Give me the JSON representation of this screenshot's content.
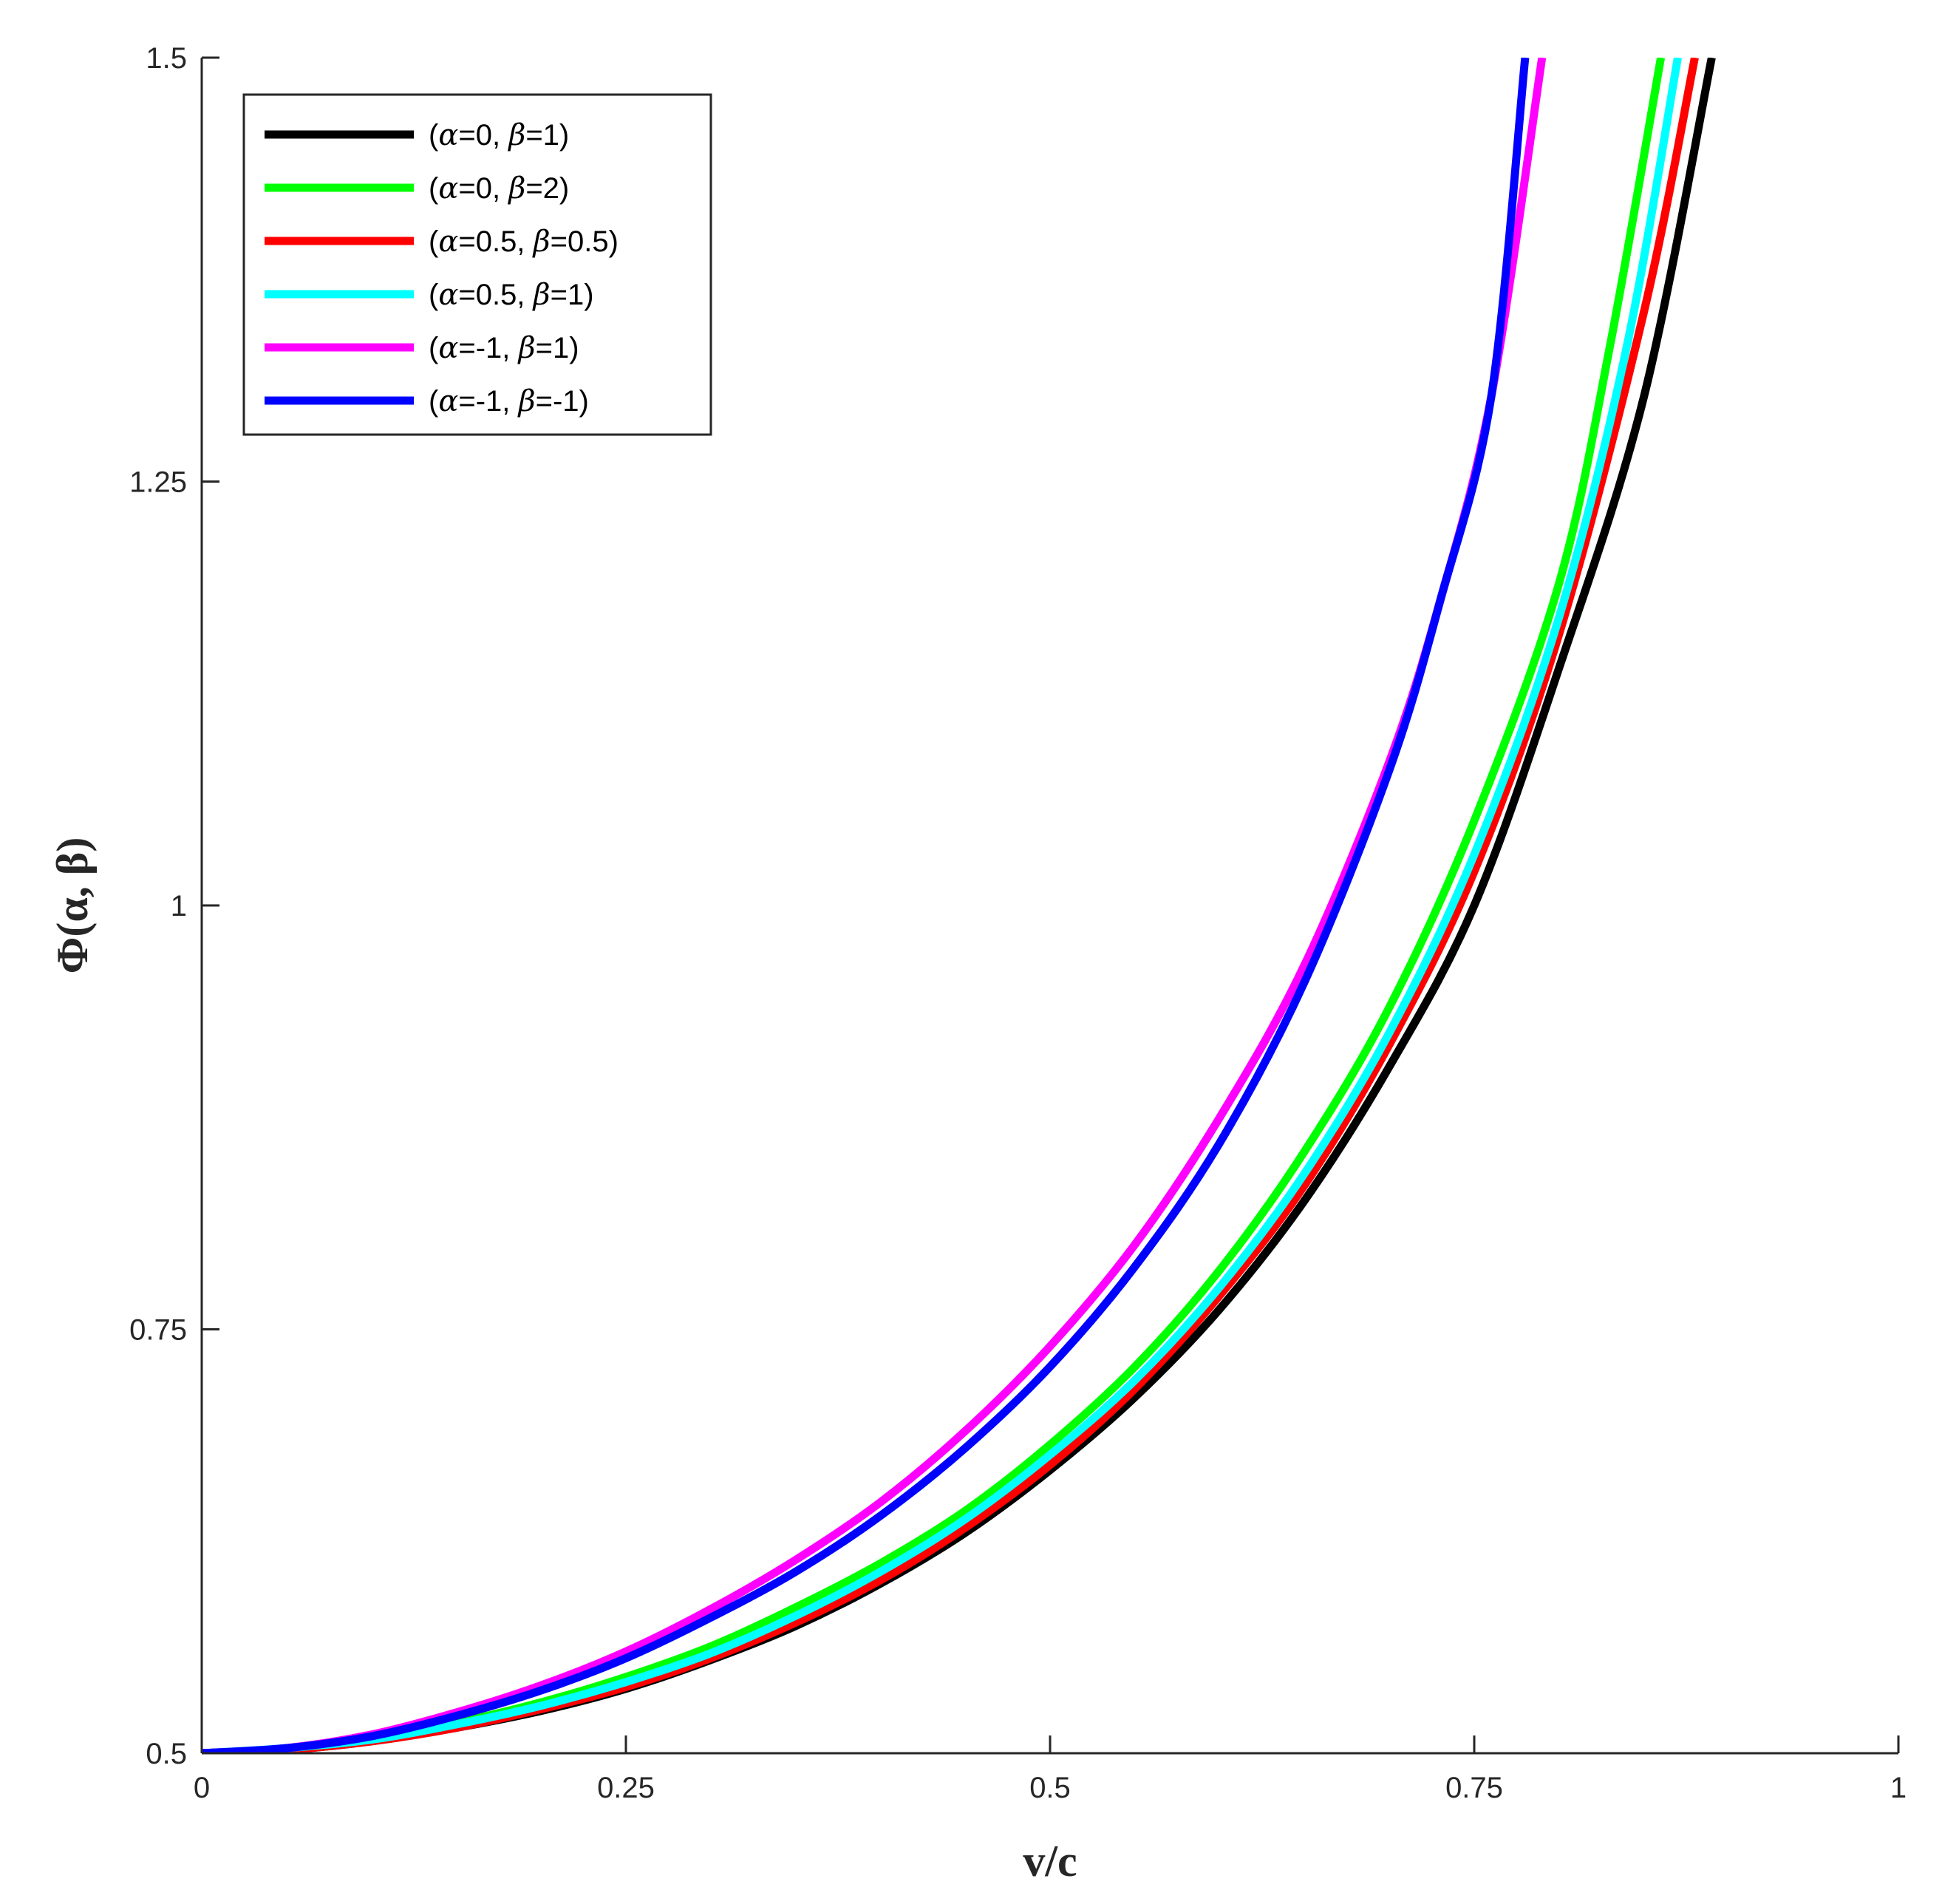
{
  "chart_data": {
    "type": "line",
    "title": "",
    "xlabel": "v/c",
    "ylabel": "Φ(α, β)",
    "xlim": [
      0,
      1
    ],
    "ylim": [
      0.5,
      1.5
    ],
    "xticks": [
      0,
      0.25,
      0.5,
      0.75,
      1
    ],
    "xtick_labels": [
      "0",
      "0.25",
      "0.5",
      "0.75",
      "1"
    ],
    "yticks": [
      0.5,
      0.75,
      1,
      1.25,
      1.5
    ],
    "ytick_labels": [
      "0.5",
      "0.75",
      "1",
      "1.25",
      "1.5"
    ],
    "grid": false,
    "legend_position": "top-left",
    "series": [
      {
        "name": "(α=0, β=1)",
        "legend": {
          "open": "(",
          "a_sym": "α",
          "a_val": "=0, ",
          "b_sym": "β",
          "b_val": "=1)"
        },
        "color": "#000000",
        "x": [
          0,
          0.05,
          0.1,
          0.15,
          0.2,
          0.25,
          0.3,
          0.35,
          0.4,
          0.45,
          0.5,
          0.55,
          0.6,
          0.65,
          0.7,
          0.75,
          0.8,
          0.85,
          0.89
        ],
        "y": [
          0.5,
          0.502,
          0.507,
          0.515,
          0.525,
          0.538,
          0.555,
          0.575,
          0.6,
          0.63,
          0.667,
          0.71,
          0.762,
          0.826,
          0.905,
          1.0,
          1.14,
          1.3,
          1.5
        ]
      },
      {
        "name": "(α=0, β=2)",
        "legend": {
          "open": "(",
          "a_sym": "α",
          "a_val": "=0, ",
          "b_sym": "β",
          "b_val": "=2)"
        },
        "color": "#00ff00",
        "x": [
          0,
          0.05,
          0.1,
          0.15,
          0.2,
          0.25,
          0.3,
          0.35,
          0.4,
          0.45,
          0.5,
          0.55,
          0.6,
          0.65,
          0.7,
          0.75,
          0.8,
          0.83,
          0.86
        ],
        "y": [
          0.5,
          0.503,
          0.509,
          0.518,
          0.53,
          0.545,
          0.563,
          0.586,
          0.612,
          0.643,
          0.682,
          0.728,
          0.785,
          0.855,
          0.94,
          1.05,
          1.19,
          1.33,
          1.5
        ]
      },
      {
        "name": "(α=0.5, β=0.5)",
        "legend": {
          "open": "(",
          "a_sym": "α",
          "a_val": "=0.5, ",
          "b_sym": "β",
          "b_val": "=0.5)"
        },
        "color": "#ff0000",
        "x": [
          0,
          0.05,
          0.1,
          0.15,
          0.2,
          0.25,
          0.3,
          0.35,
          0.4,
          0.45,
          0.5,
          0.55,
          0.6,
          0.65,
          0.7,
          0.75,
          0.8,
          0.85,
          0.88
        ],
        "y": [
          0.5,
          0.502,
          0.507,
          0.515,
          0.526,
          0.539,
          0.556,
          0.577,
          0.602,
          0.633,
          0.67,
          0.715,
          0.77,
          0.835,
          0.918,
          1.02,
          1.16,
          1.35,
          1.5
        ]
      },
      {
        "name": "(α=0.5, β=1)",
        "legend": {
          "open": "(",
          "a_sym": "α",
          "a_val": "=0.5, ",
          "b_sym": "β",
          "b_val": "=1)"
        },
        "color": "#00ffff",
        "x": [
          0,
          0.05,
          0.1,
          0.15,
          0.2,
          0.25,
          0.3,
          0.35,
          0.4,
          0.45,
          0.5,
          0.55,
          0.6,
          0.65,
          0.7,
          0.75,
          0.8,
          0.84,
          0.87
        ],
        "y": [
          0.5,
          0.503,
          0.508,
          0.517,
          0.528,
          0.542,
          0.559,
          0.581,
          0.607,
          0.638,
          0.676,
          0.72,
          0.775,
          0.842,
          0.925,
          1.03,
          1.17,
          1.33,
          1.5
        ]
      },
      {
        "name": "(α=-1, β=1)",
        "legend": {
          "open": "(",
          "a_sym": "α",
          "a_val": "=-1, ",
          "b_sym": "β",
          "b_val": "=1)"
        },
        "color": "#ff00ff",
        "x": [
          0,
          0.05,
          0.1,
          0.15,
          0.2,
          0.25,
          0.3,
          0.35,
          0.4,
          0.45,
          0.5,
          0.55,
          0.6,
          0.65,
          0.7,
          0.73,
          0.76,
          0.79
        ],
        "y": [
          0.5,
          0.503,
          0.511,
          0.524,
          0.54,
          0.56,
          0.585,
          0.614,
          0.648,
          0.69,
          0.74,
          0.8,
          0.875,
          0.965,
          1.085,
          1.18,
          1.3,
          1.5
        ]
      },
      {
        "name": "(α=-1, β=-1)",
        "legend": {
          "open": "(",
          "a_sym": "α",
          "a_val": "=-1, ",
          "b_sym": "β",
          "b_val": "=-1)"
        },
        "color": "#0000ff",
        "x": [
          0,
          0.05,
          0.1,
          0.15,
          0.2,
          0.25,
          0.3,
          0.35,
          0.4,
          0.45,
          0.5,
          0.55,
          0.6,
          0.65,
          0.7,
          0.73,
          0.76,
          0.78
        ],
        "y": [
          0.5,
          0.503,
          0.51,
          0.522,
          0.537,
          0.556,
          0.58,
          0.607,
          0.64,
          0.68,
          0.728,
          0.787,
          0.86,
          0.955,
          1.08,
          1.18,
          1.3,
          1.5
        ]
      }
    ]
  }
}
